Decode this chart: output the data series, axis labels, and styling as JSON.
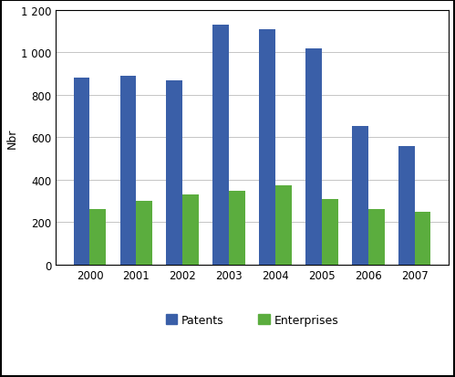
{
  "years": [
    "2000",
    "2001",
    "2002",
    "2003",
    "2004",
    "2005",
    "2006",
    "2007"
  ],
  "patents": [
    880,
    890,
    870,
    1130,
    1110,
    1020,
    655,
    560
  ],
  "enterprises": [
    260,
    300,
    330,
    350,
    375,
    310,
    260,
    250
  ],
  "patents_color": "#3A5FA8",
  "enterprises_color": "#5BAD3E",
  "ylabel": "Nbr",
  "ylim": [
    0,
    1200
  ],
  "yticks": [
    0,
    200,
    400,
    600,
    800,
    1000,
    1200
  ],
  "ytick_labels": [
    "0",
    "200",
    "400",
    "600",
    "800",
    "1 000",
    "1 200"
  ],
  "legend_patents": "Patents",
  "legend_enterprises": "Enterprises",
  "bar_width": 0.35,
  "background_color": "#ffffff",
  "grid_color": "#bbbbbb",
  "border_color": "#000000",
  "tick_label_fontsize": 8.5,
  "ylabel_fontsize": 9
}
